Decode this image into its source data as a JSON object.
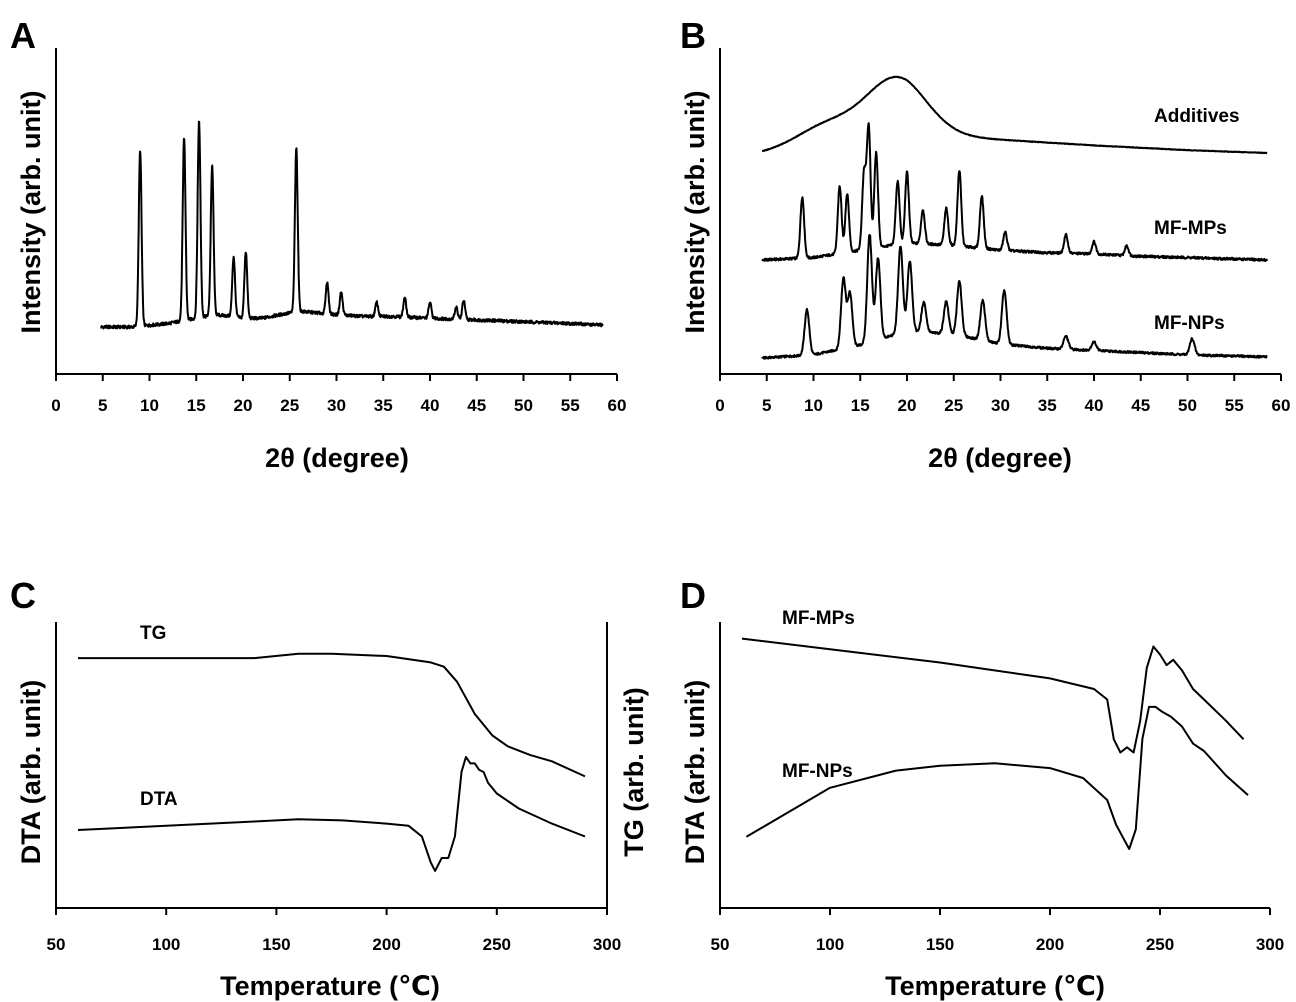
{
  "figure": {
    "panels": [
      "A",
      "B",
      "C",
      "D"
    ],
    "xrd_x_label": "2θ (degree)",
    "xrd_y_label": "Intensity (arb. unit)",
    "thermal_x_label": "Temperature (℃)",
    "dta_y_label": "DTA (arb. unit)",
    "tg_y_label": "TG (arb. unit)"
  },
  "chart_data": [
    {
      "panel": "A",
      "type": "line",
      "xlabel": "2θ (degree)",
      "ylabel": "Intensity (arb. unit)",
      "xlim": [
        0,
        60
      ],
      "xticks": [
        0,
        5,
        10,
        15,
        20,
        25,
        30,
        35,
        40,
        45,
        50,
        55,
        60
      ],
      "series": [
        {
          "peaks": [
            [
              9.0,
              1.0
            ],
            [
              13.7,
              1.04
            ],
            [
              15.3,
              1.12
            ],
            [
              16.7,
              0.85
            ],
            [
              19.0,
              0.34
            ],
            [
              20.3,
              0.38
            ],
            [
              25.7,
              0.93
            ],
            [
              29.0,
              0.18
            ],
            [
              30.5,
              0.13
            ],
            [
              34.3,
              0.08
            ],
            [
              37.3,
              0.11
            ],
            [
              40.0,
              0.09
            ],
            [
              42.8,
              0.07
            ],
            [
              43.6,
              0.11
            ]
          ],
          "x": [
            4.8,
            8.0,
            10.0,
            12.0,
            14.0,
            17.0,
            19.0,
            20.0,
            22.0,
            24.0,
            26.0,
            28.0,
            30.0,
            33.0,
            36.0,
            40.0,
            45.0,
            50.0,
            55.0,
            58.5
          ],
          "y": [
            0.0,
            0.0,
            0.01,
            0.02,
            0.04,
            0.07,
            0.06,
            0.05,
            0.05,
            0.07,
            0.09,
            0.08,
            0.07,
            0.06,
            0.06,
            0.05,
            0.04,
            0.03,
            0.02,
            0.01
          ]
        }
      ]
    },
    {
      "panel": "B",
      "type": "line",
      "xlabel": "2θ (degree)",
      "ylabel": "Intensity (arb. unit)",
      "xlim": [
        0,
        60
      ],
      "xticks": [
        0,
        5,
        10,
        15,
        20,
        25,
        30,
        35,
        40,
        45,
        50,
        55,
        60
      ],
      "series": [
        {
          "name": "Additives",
          "peaks": [
            [
              11.5,
              0.2
            ],
            [
              18.8,
              0.6
            ]
          ],
          "x": [
            4.5,
            10.0,
            20.0,
            30.0,
            40.0,
            50.0,
            58.5
          ],
          "y": [
            0.0,
            0.08,
            0.2,
            0.14,
            0.08,
            0.03,
            0.0
          ]
        },
        {
          "name": "MF-MPs",
          "peaks": [
            [
              8.8,
              0.5
            ],
            [
              12.8,
              0.55
            ],
            [
              13.6,
              0.48
            ],
            [
              15.4,
              0.62
            ],
            [
              15.9,
              1.0
            ],
            [
              16.7,
              0.78
            ],
            [
              19.0,
              0.52
            ],
            [
              20.0,
              0.58
            ],
            [
              21.7,
              0.28
            ],
            [
              24.2,
              0.3
            ],
            [
              25.6,
              0.62
            ],
            [
              28.0,
              0.43
            ],
            [
              30.5,
              0.15
            ],
            [
              37.0,
              0.15
            ],
            [
              40.0,
              0.1
            ],
            [
              43.5,
              0.08
            ]
          ],
          "x": [
            4.5,
            10.0,
            15.0,
            20.0,
            25.0,
            30.0,
            35.0,
            40.0,
            45.0,
            50.0,
            58.5
          ],
          "y": [
            0.0,
            0.02,
            0.08,
            0.14,
            0.12,
            0.08,
            0.06,
            0.05,
            0.03,
            0.02,
            0.0
          ]
        },
        {
          "name": "MF-NPs",
          "peaks": [
            [
              9.3,
              0.42
            ],
            [
              13.2,
              0.65
            ],
            [
              13.9,
              0.5
            ],
            [
              16.0,
              1.0
            ],
            [
              16.9,
              0.75
            ],
            [
              19.3,
              0.8
            ],
            [
              20.3,
              0.65
            ],
            [
              21.8,
              0.28
            ],
            [
              24.2,
              0.3
            ],
            [
              25.6,
              0.5
            ],
            [
              28.1,
              0.37
            ],
            [
              30.4,
              0.5
            ],
            [
              37.0,
              0.12
            ],
            [
              40.0,
              0.08
            ],
            [
              50.5,
              0.15
            ]
          ],
          "x": [
            4.5,
            10.0,
            15.0,
            20.0,
            25.0,
            30.0,
            35.0,
            40.0,
            45.0,
            50.0,
            58.5
          ],
          "y": [
            0.0,
            0.03,
            0.12,
            0.25,
            0.22,
            0.13,
            0.09,
            0.07,
            0.05,
            0.03,
            0.01
          ]
        }
      ]
    },
    {
      "panel": "C",
      "type": "line",
      "xlabel": "Temperature (℃)",
      "ylabel": "DTA (arb. unit)",
      "y2label": "TG (arb. unit)",
      "xlim": [
        50,
        300
      ],
      "xticks": [
        50,
        100,
        150,
        200,
        250,
        300
      ],
      "series": [
        {
          "name": "TG",
          "x": [
            60,
            100,
            140,
            160,
            175,
            200,
            220,
            226,
            232,
            240,
            248,
            255,
            265,
            275,
            290
          ],
          "y": [
            0.66,
            0.66,
            0.66,
            0.68,
            0.68,
            0.67,
            0.64,
            0.62,
            0.55,
            0.4,
            0.3,
            0.25,
            0.21,
            0.18,
            0.11
          ]
        },
        {
          "name": "DTA",
          "x": [
            60,
            100,
            140,
            160,
            180,
            200,
            210,
            216,
            220,
            222,
            225,
            228,
            231,
            234,
            236,
            238,
            240,
            242,
            244,
            246,
            250,
            260,
            275,
            290
          ],
          "y": [
            -0.07,
            -0.05,
            -0.03,
            -0.02,
            -0.025,
            -0.04,
            -0.05,
            -0.1,
            -0.22,
            -0.26,
            -0.2,
            -0.2,
            -0.1,
            0.2,
            0.27,
            0.24,
            0.24,
            0.21,
            0.2,
            0.15,
            0.1,
            0.03,
            -0.04,
            -0.1
          ]
        }
      ]
    },
    {
      "panel": "D",
      "type": "line",
      "xlabel": "Temperature (℃)",
      "ylabel": "DTA (arb. unit)",
      "xlim": [
        50,
        300
      ],
      "xticks": [
        50,
        100,
        150,
        200,
        250,
        300
      ],
      "series": [
        {
          "name": "MF-MPs",
          "x": [
            60,
            100,
            150,
            200,
            220,
            226,
            229,
            232,
            235,
            238,
            241,
            244,
            247,
            250,
            253,
            256,
            260,
            265,
            270,
            280,
            288
          ],
          "y": [
            0.76,
            0.72,
            0.67,
            0.61,
            0.57,
            0.53,
            0.38,
            0.33,
            0.35,
            0.33,
            0.45,
            0.65,
            0.73,
            0.7,
            0.66,
            0.68,
            0.64,
            0.57,
            0.53,
            0.45,
            0.38
          ]
        },
        {
          "name": "MF-NPs",
          "x": [
            62,
            100,
            130,
            150,
            175,
            200,
            215,
            226,
            230,
            233,
            236,
            239,
            242,
            245,
            248,
            251,
            255,
            260,
            265,
            270,
            280,
            290
          ],
          "y": [
            -0.15,
            0.05,
            0.12,
            0.14,
            0.15,
            0.13,
            0.09,
            0.0,
            -0.1,
            -0.15,
            -0.2,
            -0.12,
            0.25,
            0.38,
            0.38,
            0.36,
            0.34,
            0.3,
            0.23,
            0.2,
            0.1,
            0.02
          ]
        }
      ]
    }
  ]
}
